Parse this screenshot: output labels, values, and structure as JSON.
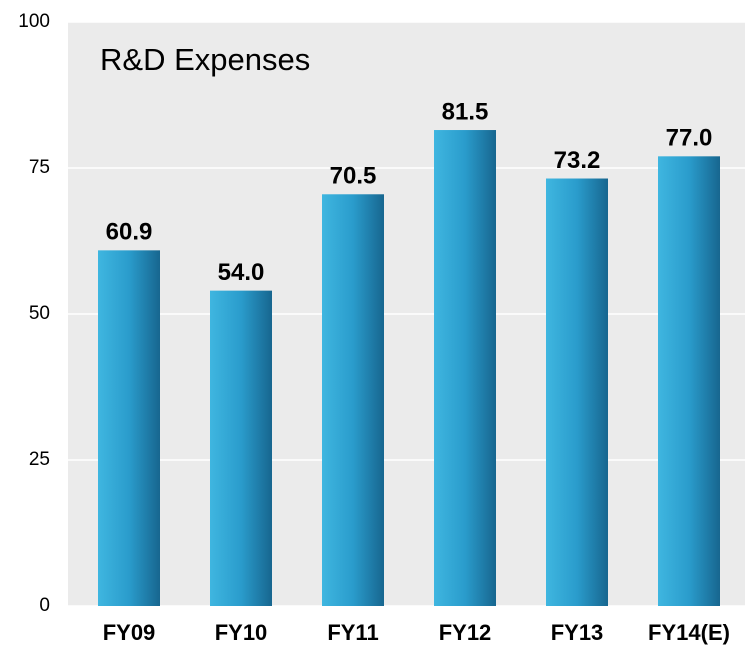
{
  "chart_data": {
    "type": "bar",
    "title": "R&D Expenses",
    "categories": [
      "FY09",
      "FY10",
      "FY11",
      "FY12",
      "FY13",
      "FY14(E)"
    ],
    "values": [
      60.9,
      54.0,
      70.5,
      81.5,
      73.2,
      77.0
    ],
    "value_labels": [
      "60.9",
      "54.0",
      "70.5",
      "81.5",
      "73.2",
      "77.0"
    ],
    "color": "#2a9ccc",
    "ylim": [
      0,
      100
    ],
    "yticks": [
      0,
      25,
      50,
      75,
      100
    ],
    "grid": true
  }
}
